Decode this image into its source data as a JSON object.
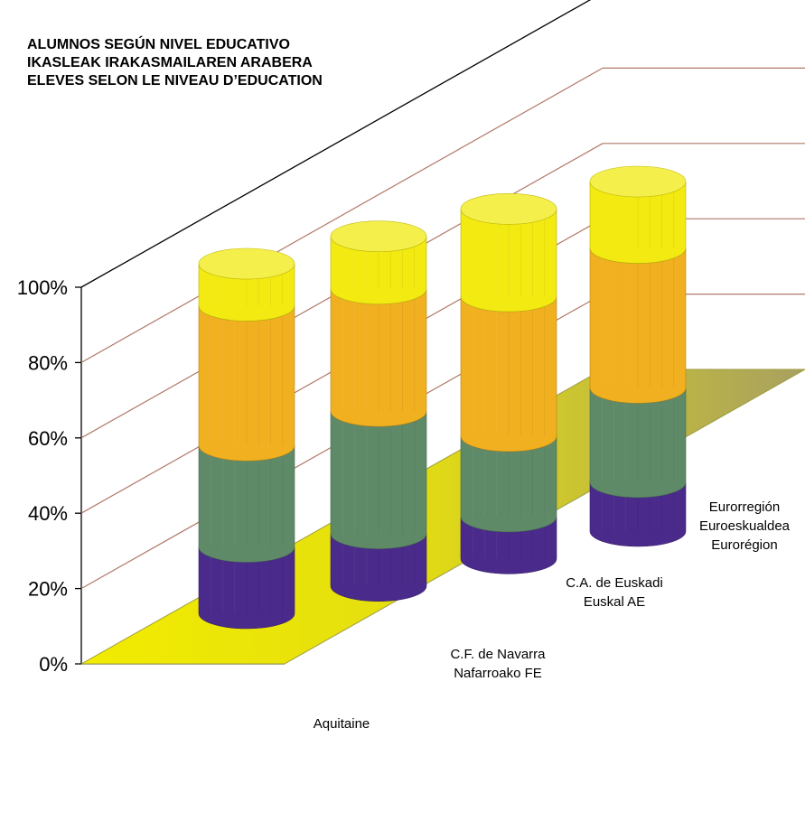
{
  "chart_data": {
    "type": "bar",
    "stacked": true,
    "three_d": true,
    "title_lines": [
      "ALUMNOS SEGÚN NIVEL EDUCATIVO",
      "IKASLEAK IRAKASMAILAREN ARABERA",
      "ELEVES SELON LE NIVEAU D’EDUCATION"
    ],
    "categories": [
      [
        "Aquitaine"
      ],
      [
        "C.F. de Navarra",
        "Nafarroako FE"
      ],
      [
        "C.A. de Euskadi",
        "Euskal AE"
      ],
      [
        "Eurorregión",
        "Euroeskualdea",
        "Eurorégion"
      ]
    ],
    "series": [
      {
        "color": "#4a2a8a",
        "values": [
          19,
          15,
          12,
          14
        ]
      },
      {
        "color": "#5f8a68",
        "values": [
          29,
          35,
          23,
          27
        ]
      },
      {
        "color": "#f0b020",
        "values": [
          40,
          35,
          40,
          40
        ]
      },
      {
        "color": "#f2ea10",
        "values": [
          12,
          15,
          25,
          19
        ]
      }
    ],
    "y_ticks": [
      "0%",
      "20%",
      "40%",
      "60%",
      "80%",
      "100%"
    ],
    "ylim": [
      0,
      100
    ],
    "grid": true,
    "floor_color": "#e8e000",
    "gridline_color": "#b07868"
  }
}
